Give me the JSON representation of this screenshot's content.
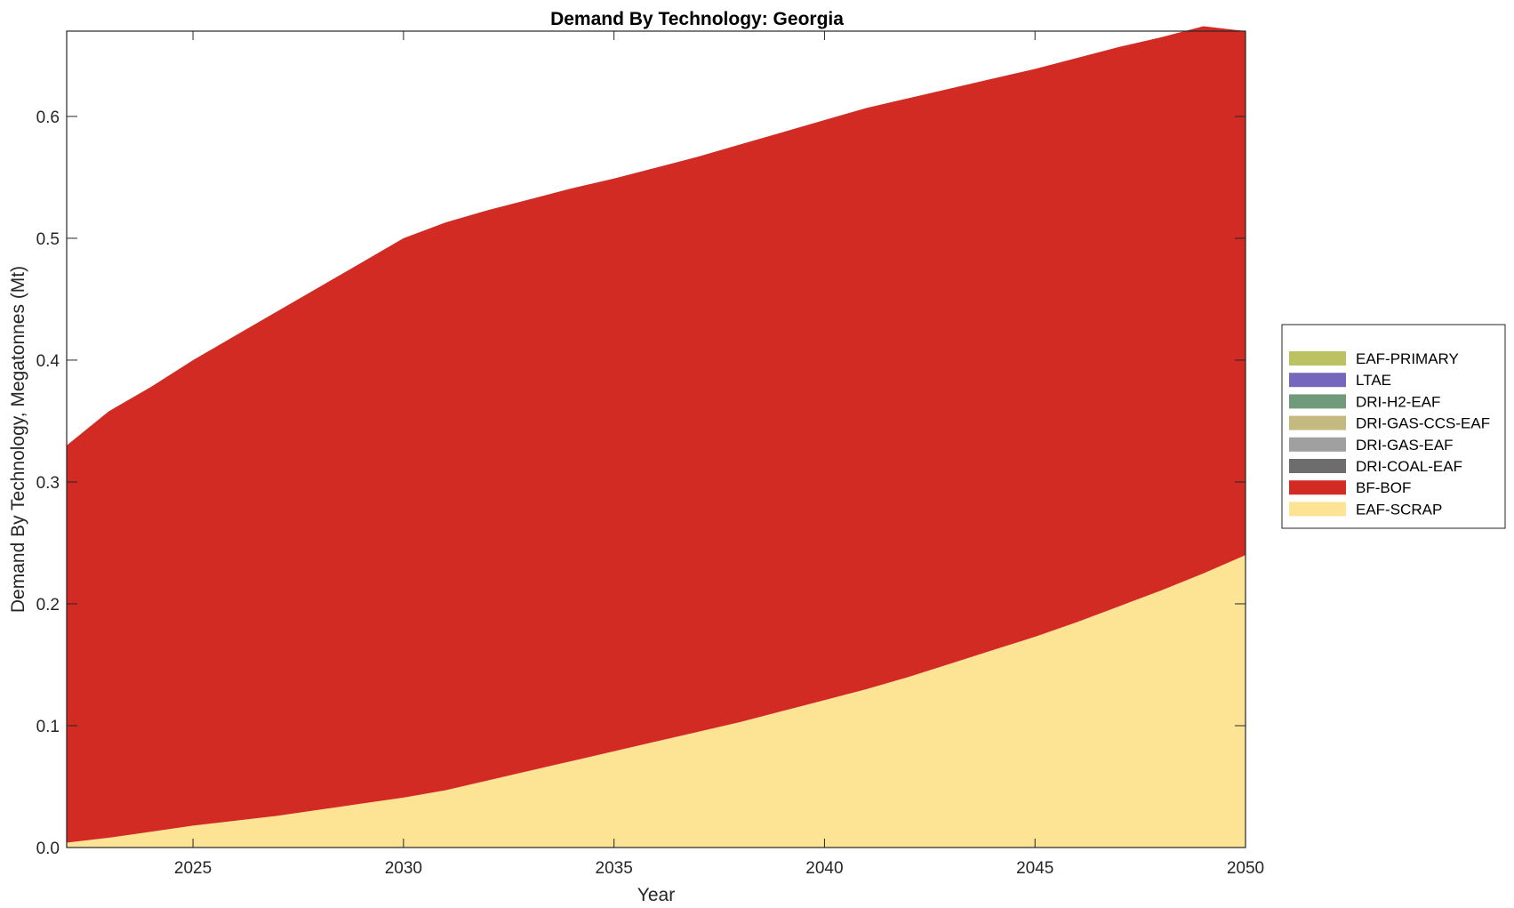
{
  "chart_data": {
    "type": "area",
    "stacked": true,
    "title": "Demand By Technology: Georgia",
    "xlabel": "Year",
    "ylabel": "Demand By Technology, Megatonnes (Mt)",
    "xlim": [
      2022,
      2050
    ],
    "ylim": [
      0,
      0.67
    ],
    "xticks": [
      "2025",
      "2030",
      "2035",
      "2040",
      "2045",
      "2050"
    ],
    "yticks": [
      "0.0",
      "0.1",
      "0.2",
      "0.3",
      "0.4",
      "0.5",
      "0.6"
    ],
    "grid": false,
    "legend_position": "right",
    "x": [
      2022,
      2023,
      2024,
      2025,
      2026,
      2027,
      2028,
      2029,
      2030,
      2031,
      2032,
      2033,
      2034,
      2035,
      2036,
      2037,
      2038,
      2039,
      2040,
      2041,
      2042,
      2043,
      2044,
      2045,
      2046,
      2047,
      2048,
      2049,
      2050
    ],
    "series": [
      {
        "name": "EAF-SCRAP",
        "color": "#FDE394",
        "values": [
          0.004,
          0.008,
          0.013,
          0.018,
          0.022,
          0.026,
          0.031,
          0.036,
          0.041,
          0.047,
          0.055,
          0.063,
          0.071,
          0.079,
          0.087,
          0.095,
          0.103,
          0.112,
          0.121,
          0.13,
          0.14,
          0.151,
          0.162,
          0.173,
          0.185,
          0.198,
          0.211,
          0.225,
          0.24
        ]
      },
      {
        "name": "BF-BOF",
        "color": "#D12B24",
        "values": [
          0.326,
          0.35,
          0.365,
          0.382,
          0.398,
          0.414,
          0.429,
          0.444,
          0.459,
          0.466,
          0.468,
          0.469,
          0.47,
          0.47,
          0.471,
          0.472,
          0.474,
          0.475,
          0.476,
          0.477,
          0.475,
          0.472,
          0.469,
          0.466,
          0.463,
          0.459,
          0.454,
          0.449,
          0.43
        ]
      },
      {
        "name": "DRI-COAL-EAF",
        "color": "#6D6D6D",
        "values": [
          0,
          0,
          0,
          0,
          0,
          0,
          0,
          0,
          0,
          0,
          0,
          0,
          0,
          0,
          0,
          0,
          0,
          0,
          0,
          0,
          0,
          0,
          0,
          0,
          0,
          0,
          0,
          0,
          0
        ]
      },
      {
        "name": "DRI-GAS-EAF",
        "color": "#A0A0A0",
        "values": [
          0,
          0,
          0,
          0,
          0,
          0,
          0,
          0,
          0,
          0,
          0,
          0,
          0,
          0,
          0,
          0,
          0,
          0,
          0,
          0,
          0,
          0,
          0,
          0,
          0,
          0,
          0,
          0,
          0
        ]
      },
      {
        "name": "DRI-GAS-CCS-EAF",
        "color": "#C4B97E",
        "values": [
          0,
          0,
          0,
          0,
          0,
          0,
          0,
          0,
          0,
          0,
          0,
          0,
          0,
          0,
          0,
          0,
          0,
          0,
          0,
          0,
          0,
          0,
          0,
          0,
          0,
          0,
          0,
          0,
          0
        ]
      },
      {
        "name": "DRI-H2-EAF",
        "color": "#719A7B",
        "values": [
          0,
          0,
          0,
          0,
          0,
          0,
          0,
          0,
          0,
          0,
          0,
          0,
          0,
          0,
          0,
          0,
          0,
          0,
          0,
          0,
          0,
          0,
          0,
          0,
          0,
          0,
          0,
          0,
          0
        ]
      },
      {
        "name": "LTAE",
        "color": "#7467BC",
        "values": [
          0,
          0,
          0,
          0,
          0,
          0,
          0,
          0,
          0,
          0,
          0,
          0,
          0,
          0,
          0,
          0,
          0,
          0,
          0,
          0,
          0,
          0,
          0,
          0,
          0,
          0,
          0,
          0,
          0
        ]
      },
      {
        "name": "EAF-PRIMARY",
        "color": "#BCC262",
        "values": [
          0,
          0,
          0,
          0,
          0,
          0,
          0,
          0,
          0,
          0,
          0,
          0,
          0,
          0,
          0,
          0,
          0,
          0,
          0,
          0,
          0,
          0,
          0,
          0,
          0,
          0,
          0,
          0,
          0
        ]
      }
    ],
    "legend_order": [
      "EAF-PRIMARY",
      "LTAE",
      "DRI-H2-EAF",
      "DRI-GAS-CCS-EAF",
      "DRI-GAS-EAF",
      "DRI-COAL-EAF",
      "BF-BOF",
      "EAF-SCRAP"
    ]
  }
}
